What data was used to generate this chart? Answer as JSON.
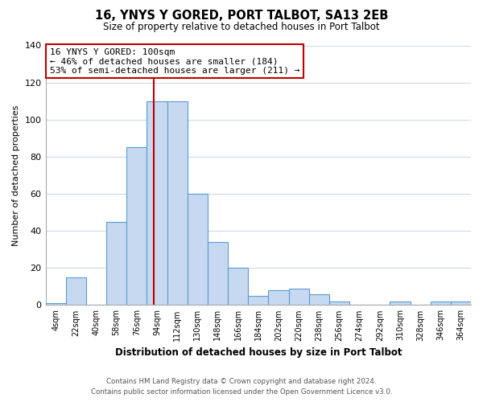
{
  "title": "16, YNYS Y GORED, PORT TALBOT, SA13 2EB",
  "subtitle": "Size of property relative to detached houses in Port Talbot",
  "xlabel": "Distribution of detached houses by size in Port Talbot",
  "ylabel": "Number of detached properties",
  "bin_labels": [
    "4sqm",
    "22sqm",
    "40sqm",
    "58sqm",
    "76sqm",
    "94sqm",
    "112sqm",
    "130sqm",
    "148sqm",
    "166sqm",
    "184sqm",
    "202sqm",
    "220sqm",
    "238sqm",
    "256sqm",
    "274sqm",
    "292sqm",
    "310sqm",
    "328sqm",
    "346sqm",
    "364sqm"
  ],
  "bar_heights": [
    1,
    15,
    0,
    45,
    85,
    110,
    110,
    60,
    34,
    20,
    5,
    8,
    9,
    6,
    2,
    0,
    0,
    2,
    0,
    2,
    2
  ],
  "bar_color": "#c6d9f0",
  "bar_edge_color": "#5b9bd5",
  "vline_index": 5,
  "vline_color": "#c00000",
  "annotation_line1": "16 YNYS Y GORED: 100sqm",
  "annotation_line2": "← 46% of detached houses are smaller (184)",
  "annotation_line3": "53% of semi-detached houses are larger (211) →",
  "annotation_box_color": "#ffffff",
  "annotation_box_edge": "#c00000",
  "ylim": [
    0,
    140
  ],
  "yticks": [
    0,
    20,
    40,
    60,
    80,
    100,
    120,
    140
  ],
  "footer_line1": "Contains HM Land Registry data © Crown copyright and database right 2024.",
  "footer_line2": "Contains public sector information licensed under the Open Government Licence v3.0.",
  "background_color": "#ffffff",
  "grid_color": "#ccd9e8"
}
